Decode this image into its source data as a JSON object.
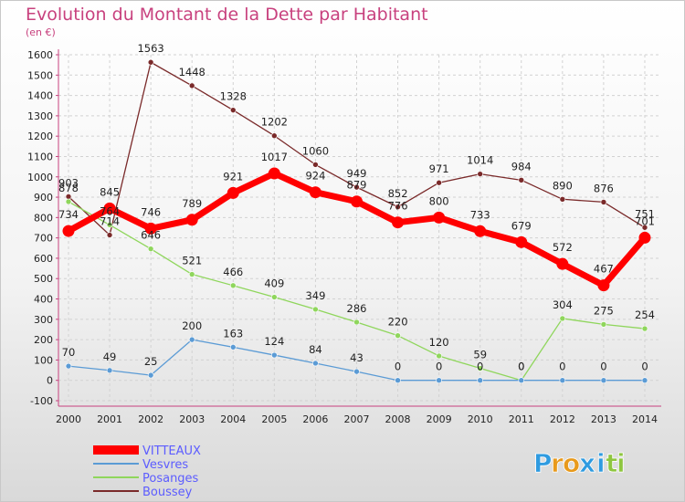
{
  "header": {
    "title": "Evolution du Montant de la Dette par Habitant",
    "unit": "(en €)"
  },
  "brand": {
    "letters": [
      "P",
      "r",
      "o",
      "x",
      "i",
      "t",
      "i"
    ],
    "colors": [
      "#2f9be0",
      "#e89a1c",
      "#e89a1c",
      "#2f9be0",
      "#2f9be0",
      "#8ec63f",
      "#8ec63f"
    ]
  },
  "colors": {
    "title": "#c8417e",
    "legend_text": "#5c5cff"
  },
  "chart_data": {
    "type": "line",
    "title": "Evolution du Montant de la Dette par Habitant",
    "ylabel": "(en €)",
    "xlabel": "",
    "x": [
      "2000",
      "2001",
      "2002",
      "2003",
      "2004",
      "2005",
      "2006",
      "2007",
      "2008",
      "2009",
      "2010",
      "2011",
      "2012",
      "2013",
      "2014"
    ],
    "ylim": [
      -100,
      1600
    ],
    "yticks": [
      "-100",
      "0",
      "100",
      "200",
      "300",
      "400",
      "500",
      "600",
      "700",
      "800",
      "900",
      "1000",
      "1100",
      "1200",
      "1300",
      "1400",
      "1500",
      "1600"
    ],
    "grid": true,
    "legend_position": "bottom-left",
    "series": [
      {
        "name": "VITTEAUX",
        "color": "#ff0000",
        "values": [
          734,
          845,
          746,
          789,
          921,
          1017,
          924,
          879,
          776,
          800,
          733,
          679,
          572,
          467,
          701
        ],
        "labels": [
          "734",
          "845",
          "746",
          "789",
          "921",
          "1017",
          "924",
          "879",
          "776",
          "800",
          "733",
          "679",
          "572",
          "467",
          "701"
        ]
      },
      {
        "name": "Vesvres",
        "color": "#5b9bd5",
        "values": [
          70,
          49,
          25,
          200,
          163,
          124,
          84,
          43,
          0,
          0,
          0,
          0,
          0,
          0,
          0
        ],
        "labels": [
          "70",
          "49",
          "25",
          "200",
          "163",
          "124",
          "84",
          "43",
          "0",
          "0",
          "0",
          "0",
          "0",
          "0",
          "0"
        ]
      },
      {
        "name": "Posanges",
        "color": "#8fd65c",
        "values": [
          878,
          764,
          646,
          521,
          466,
          409,
          349,
          286,
          220,
          120,
          59,
          0,
          304,
          275,
          254
        ],
        "labels": [
          "878",
          "764",
          "646",
          "521",
          "466",
          "409",
          "349",
          "286",
          "220",
          "120",
          "59",
          "0",
          "304",
          "275",
          "254"
        ]
      },
      {
        "name": "Boussey",
        "color": "#7a2a2a",
        "values": [
          903,
          714,
          1563,
          1448,
          1328,
          1202,
          1060,
          949,
          852,
          971,
          1014,
          984,
          890,
          876,
          751
        ],
        "labels": [
          "903",
          "714",
          "1563",
          "1448",
          "1328",
          "1202",
          "1060",
          "949",
          "852",
          "971",
          "1014",
          "984",
          "890",
          "876",
          "751"
        ]
      }
    ]
  }
}
